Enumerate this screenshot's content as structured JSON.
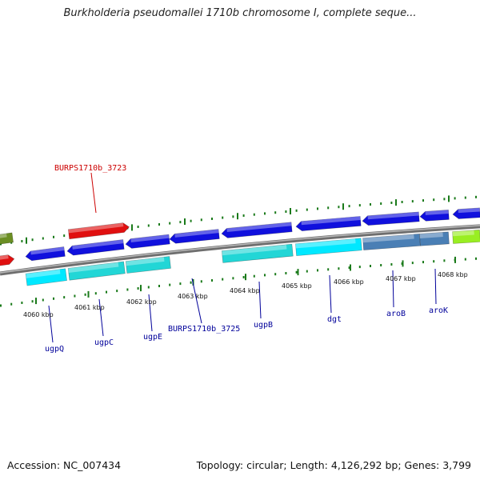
{
  "title": "Burkholderia pseudomallei 1710b chromosome I, complete seque...",
  "accession_text": "Accession: NC_007434",
  "summary_text": "Topology: circular; Length: 4,126,292 bp; Genes: 3,799",
  "kbp_labels": [
    "4060 kbp",
    "4061 kbp",
    "4062 kbp",
    "4063 kbp",
    "4064 kbp",
    "4065 kbp",
    "4066 kbp",
    "4067 kbp",
    "4068 kbp"
  ],
  "gene_labels": [
    "ugpQ",
    "ugpC",
    "ugpE",
    "BURPS1710b_3725",
    "ugpB",
    "dgt",
    "aroB",
    "aroK"
  ],
  "top_gene_label": "BURPS1710b_3723",
  "colors": {
    "backbone": "#8c8c8c",
    "tick": "#1a7a1a",
    "cds": "#1010dd",
    "red_feature": "#e01010",
    "olive_feature": "#6b8e23",
    "cyan": "#22d6d6",
    "light_cyan": "#00e8ff",
    "steel": "#4a7fb5",
    "lime": "#99ee22",
    "gene_label": "#00009a",
    "red_label": "#cc0000"
  }
}
